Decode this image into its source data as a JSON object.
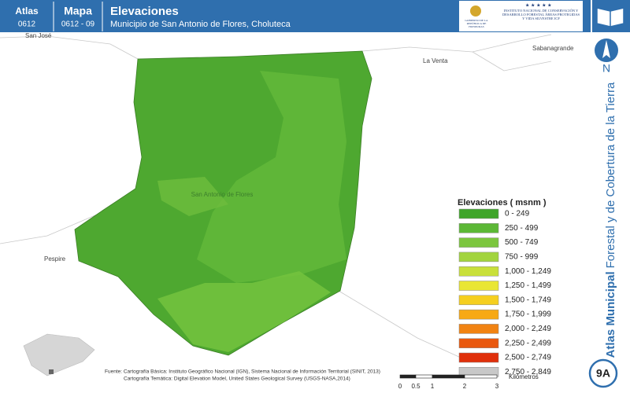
{
  "header": {
    "atlas_label": "Atlas",
    "atlas_code": "0612",
    "map_label": "Mapa",
    "map_code": "0612 - 09",
    "title": "Elevaciones",
    "subtitle": "Municipio de San Antonio de Flores, Choluteca",
    "logo_left": "GOBIERNO DE LA REPÚBLICA DE HONDURAS",
    "logo_right": "INSTITUTO NACIONAL DE CONSERVACIÓN Y DESARROLLO FORESTAL ÁREAS PROTEGIDAS Y VIDA SILVESTRE ICF"
  },
  "places": [
    "San José",
    "La Venta",
    "Sabanagrande",
    "Pespire",
    "San Antonio de Flores"
  ],
  "legend": {
    "title": "Elevaciones ( msnm )",
    "items": [
      {
        "label": "0 - 249",
        "color": "#3fa52a"
      },
      {
        "label": "250 - 499",
        "color": "#5cb836"
      },
      {
        "label": "500 - 749",
        "color": "#7cc63e"
      },
      {
        "label": "750 - 999",
        "color": "#a2d43e"
      },
      {
        "label": "1,000 - 1,249",
        "color": "#c9e03a"
      },
      {
        "label": "1,250 - 1,499",
        "color": "#e9e634"
      },
      {
        "label": "1,500 - 1,749",
        "color": "#f5cf1f"
      },
      {
        "label": "1,750 - 1,999",
        "color": "#f7a914"
      },
      {
        "label": "2,000 - 2,249",
        "color": "#f18312"
      },
      {
        "label": "2,250 - 2,499",
        "color": "#e9580e"
      },
      {
        "label": "2,500 - 2,749",
        "color": "#e0300b"
      },
      {
        "label": "2,750 - 2,849",
        "color": "#c8c8c8"
      }
    ]
  },
  "north": "N",
  "side_title": {
    "bold": "Atlas Municipal",
    "rest": "Forestal y de Cobertura de la Tierra"
  },
  "badge": "9A",
  "source": {
    "line1": "Fuente: Cartografía Básica: Instituto Geográfico Nacional (IGN), Sistema Nacional de Información Territorial (SINIT, 2013)",
    "line2": "Cartografía Temática: Digital Elevation Model, United States Geological Survey (USGS-NASA,2014)"
  },
  "scale": {
    "ticks": [
      "0",
      "0.5",
      "1",
      "2",
      "3"
    ],
    "unit": "Kilómetros"
  }
}
